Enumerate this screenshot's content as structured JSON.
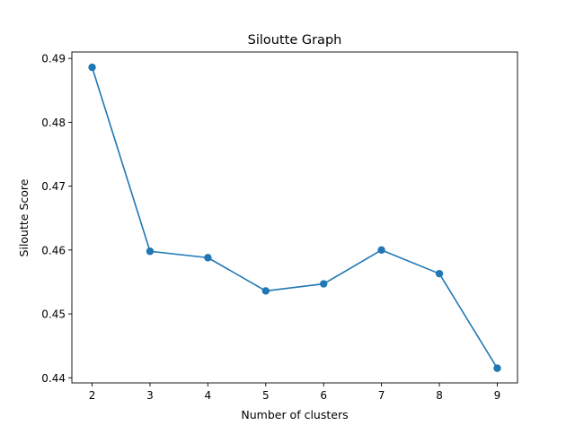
{
  "chart_data": {
    "type": "line",
    "title": "Siloutte Graph",
    "xlabel": "Number of clusters",
    "ylabel": "Siloutte Score",
    "x": [
      2,
      3,
      4,
      5,
      6,
      7,
      8,
      9
    ],
    "series": [
      {
        "values": [
          0.4886,
          0.4598,
          0.4588,
          0.4536,
          0.4547,
          0.46,
          0.4563,
          0.4415
        ],
        "color": "#1f77b4",
        "marker": "circle"
      }
    ],
    "xticks": [
      "2",
      "3",
      "4",
      "5",
      "6",
      "7",
      "8",
      "9"
    ],
    "yticks": [
      "0.44",
      "0.45",
      "0.46",
      "0.47",
      "0.48",
      "0.49"
    ],
    "xlim": [
      1.65,
      9.35
    ],
    "ylim": [
      0.4392,
      0.491
    ],
    "grid": false
  }
}
